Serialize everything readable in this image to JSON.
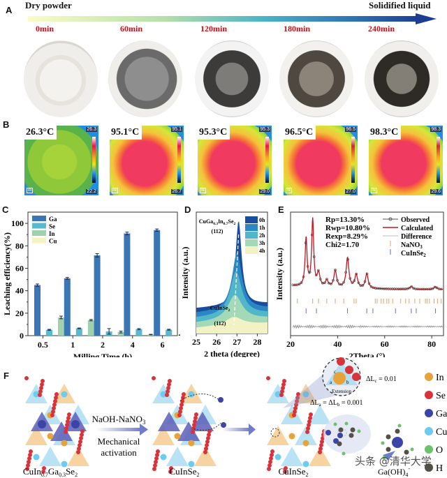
{
  "panelA": {
    "letter": "A",
    "start_label": "Dry powder",
    "end_label": "Solidified liquid",
    "times": [
      "0min",
      "60min",
      "120min",
      "180min",
      "240min"
    ],
    "photo_descriptions": [
      "white empty jar with few balls",
      "grey powder with balls",
      "dark grey with coated balls",
      "brown-grey with balls",
      "dark solidified with balls"
    ]
  },
  "panelB": {
    "letter": "B",
    "images": [
      {
        "temp": "26.3°C",
        "max": "26.3",
        "min": "22.2"
      },
      {
        "temp": "95.1°C",
        "max": "95.1",
        "min": "26.7"
      },
      {
        "temp": "95.3°C",
        "max": "95.3",
        "min": "29.0"
      },
      {
        "temp": "96.5°C",
        "max": "96.5",
        "min": "27.0"
      },
      {
        "temp": "98.3°C",
        "max": "98.3",
        "min": "29.6"
      }
    ],
    "ir_badge": "IR"
  },
  "chart_data": [
    {
      "panel": "C",
      "type": "bar",
      "title": "",
      "xlabel": "Milling Time (h)",
      "ylabel": "Leaching efficiency(%)",
      "categories": [
        "0.5",
        "1",
        "2",
        "4",
        "6"
      ],
      "ylim": [
        0,
        110
      ],
      "yticks": [
        0,
        20,
        40,
        60,
        80,
        100
      ],
      "legend_position": "top-left",
      "series": [
        {
          "name": "Ga",
          "color": "#3a75b5",
          "values": [
            45,
            51,
            71.5,
            91,
            94
          ],
          "errors": [
            1,
            0.8,
            1.5,
            1.2,
            1
          ]
        },
        {
          "name": "Se",
          "color": "#5ab8cf",
          "values": [
            5.2,
            6.5,
            3.8,
            5.8,
            5.3
          ],
          "errors": [
            0.4,
            0.3,
            2.5,
            0.5,
            0.4
          ]
        },
        {
          "name": "In",
          "color": "#9fd1ad",
          "values": [
            16.2,
            13.8,
            3.2,
            1.0,
            0.5
          ],
          "errors": [
            1.2,
            0.6,
            0.8,
            0.2,
            0.2
          ]
        },
        {
          "name": "Cu",
          "color": "#f5f3bf",
          "values": [
            0,
            0,
            0,
            0,
            0
          ],
          "errors": [
            0,
            0,
            0,
            0,
            0
          ]
        }
      ]
    },
    {
      "panel": "D",
      "type": "area",
      "title": "",
      "xlabel": "2 theta (degree)",
      "ylabel": "Intensity (a.u.)",
      "xlim": [
        25,
        28.5
      ],
      "xticks": [
        25,
        26,
        27,
        28
      ],
      "legend_position": "top-right",
      "annotations": [
        "CuGa0.3In0.7Se2 (112)",
        "CuInSe2 (112)"
      ],
      "series": [
        {
          "name": "0h",
          "color": "#1b4d9e",
          "peak_x": 27.08,
          "peak_rel": 1.0
        },
        {
          "name": "1h",
          "color": "#2a86c4",
          "peak_x": 27.0,
          "peak_rel": 0.68
        },
        {
          "name": "2h",
          "color": "#52b6c9",
          "peak_x": 26.95,
          "peak_rel": 0.52
        },
        {
          "name": "3h",
          "color": "#a4d9b8",
          "peak_x": 26.9,
          "peak_rel": 0.3
        },
        {
          "name": "4h",
          "color": "#f3f2c4",
          "peak_x": 26.85,
          "peak_rel": 0.1
        }
      ]
    },
    {
      "panel": "E",
      "type": "line",
      "title": "",
      "xlabel": "2Theta (°)",
      "ylabel": "Intensity (a.u.)",
      "xlim": [
        20,
        85
      ],
      "xticks": [
        20,
        40,
        60,
        80
      ],
      "legend_position": "top-right",
      "stats": [
        "Rp=13.30%",
        "Rwp=10.80%",
        "Rexp=8.29%",
        "Chi2=1.70"
      ],
      "series": [
        {
          "name": "Observed",
          "color": "#555555"
        },
        {
          "name": "Calculated",
          "color": "#c0161f"
        },
        {
          "name": "Difference",
          "color": "#999999"
        },
        {
          "name": "NaNO3",
          "color": "#e8a060",
          "ticks": [
            22.9,
            29.4,
            31.9,
            35.4,
            39.0,
            42.6,
            47.0,
            47.9,
            56.0,
            56.8,
            58.5,
            59.5,
            60.9,
            61.8,
            63.4,
            66.8,
            68.9,
            70.4,
            72.8,
            74.9,
            77.3,
            78.0,
            79.0,
            81.0,
            82.5,
            84.0
          ]
        },
        {
          "name": "CuInSe2",
          "color": "#6a6ad0",
          "ticks": [
            26.6,
            31.0,
            44.2,
            52.4,
            55.0,
            64.6,
            71.3,
            73.4,
            81.6
          ]
        }
      ],
      "peaks": [
        {
          "x": 26.6,
          "y": 0.72
        },
        {
          "x": 29.4,
          "y": 1.0
        },
        {
          "x": 31.9,
          "y": 0.2
        },
        {
          "x": 35.4,
          "y": 0.1
        },
        {
          "x": 39.0,
          "y": 0.25
        },
        {
          "x": 44.2,
          "y": 0.45
        },
        {
          "x": 47.9,
          "y": 0.2
        },
        {
          "x": 52.4,
          "y": 0.22
        },
        {
          "x": 71.3,
          "y": 0.04
        },
        {
          "x": 81.6,
          "y": 0.04
        }
      ]
    }
  ],
  "panelF": {
    "letter": "F",
    "structures": [
      "CuIn0.7Ga0.3Se2",
      "CuInSe2",
      "CuInSe2"
    ],
    "arrow_top": "NaOH-NaNO3",
    "arrow_bottom_1": "Mechanical",
    "arrow_bottom_2": "activation",
    "zoom_labels": {
      "a": "a",
      "b": "b",
      "c": "c",
      "extension": "Extension"
    },
    "delta_c": "ΔLc = 0.01",
    "delta_ab": "ΔLa = ΔLb = 0.001",
    "product": "Ga(OH)4-",
    "legend": [
      {
        "name": "In",
        "color": "#e8a23a"
      },
      {
        "name": "Se",
        "color": "#d8333a"
      },
      {
        "name": "Ga",
        "color": "#3b45a8"
      },
      {
        "name": "Cu",
        "color": "#6ccbef"
      },
      {
        "name": "O",
        "color": "#6bc26a"
      },
      {
        "name": "H",
        "color": "#555045"
      }
    ],
    "watermark": "头条 @清华大学"
  }
}
